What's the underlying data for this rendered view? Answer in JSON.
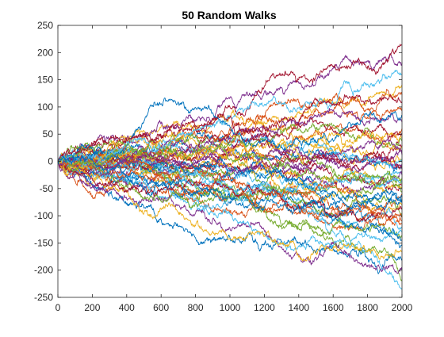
{
  "chart_data": {
    "type": "line",
    "title": "50 Random Walks",
    "xlabel": "",
    "ylabel": "",
    "xlim": [
      0,
      2000
    ],
    "ylim": [
      -250,
      250
    ],
    "x_ticks": [
      0,
      200,
      400,
      600,
      800,
      1000,
      1200,
      1400,
      1600,
      1800,
      2000
    ],
    "y_ticks": [
      -250,
      -200,
      -150,
      -100,
      -50,
      0,
      50,
      100,
      150,
      200,
      250
    ],
    "grid": false,
    "legend": "none",
    "series_count": 50,
    "steps_per_walk": 2000,
    "start_value": 0,
    "x_step": 1,
    "colors": [
      "#0072BD",
      "#D95319",
      "#EDB120",
      "#7E2F8E",
      "#77AC30",
      "#4DBEEE",
      "#A2142F"
    ],
    "series_endpoints": [
      {
        "end": 214,
        "max": 222,
        "min": -15
      },
      {
        "end": 182,
        "max": 218,
        "min": -10
      },
      {
        "end": 160,
        "max": 175,
        "min": -12
      },
      {
        "end": 140,
        "max": 150,
        "min": -8
      },
      {
        "end": 122,
        "max": 135,
        "min": -10
      },
      {
        "end": 108,
        "max": 150,
        "min": -20
      },
      {
        "end": 95,
        "max": 118,
        "min": -15
      },
      {
        "end": 85,
        "max": 110,
        "min": -18
      },
      {
        "end": 72,
        "max": 105,
        "min": -12
      },
      {
        "end": 60,
        "max": 95,
        "min": -25
      },
      {
        "end": 52,
        "max": 80,
        "min": -20
      },
      {
        "end": 45,
        "max": 100,
        "min": -15
      },
      {
        "end": 38,
        "max": 70,
        "min": -30
      },
      {
        "end": 30,
        "max": 75,
        "min": -25
      },
      {
        "end": 25,
        "max": 60,
        "min": -30
      },
      {
        "end": 18,
        "max": 65,
        "min": -35
      },
      {
        "end": 12,
        "max": 55,
        "min": -40
      },
      {
        "end": 5,
        "max": 60,
        "min": -30
      },
      {
        "end": 0,
        "max": 45,
        "min": -45
      },
      {
        "end": -5,
        "max": 50,
        "min": -40
      },
      {
        "end": -10,
        "max": 40,
        "min": -50
      },
      {
        "end": -15,
        "max": 35,
        "min": -55
      },
      {
        "end": -20,
        "max": 45,
        "min": -60
      },
      {
        "end": -25,
        "max": 30,
        "min": -65
      },
      {
        "end": -30,
        "max": 25,
        "min": -70
      },
      {
        "end": -35,
        "max": 40,
        "min": -75
      },
      {
        "end": -40,
        "max": 20,
        "min": -80
      },
      {
        "end": -45,
        "max": 30,
        "min": -70
      },
      {
        "end": -50,
        "max": 25,
        "min": -85
      },
      {
        "end": -55,
        "max": 20,
        "min": -90
      },
      {
        "end": -60,
        "max": 35,
        "min": -95
      },
      {
        "end": -65,
        "max": 15,
        "min": -100
      },
      {
        "end": -70,
        "max": 20,
        "min": -105
      },
      {
        "end": -75,
        "max": 10,
        "min": -110
      },
      {
        "end": -80,
        "max": 25,
        "min": -115
      },
      {
        "end": -88,
        "max": 15,
        "min": -120
      },
      {
        "end": -95,
        "max": 10,
        "min": -125
      },
      {
        "end": -100,
        "max": 20,
        "min": -130
      },
      {
        "end": -108,
        "max": 12,
        "min": -135
      },
      {
        "end": -115,
        "max": 15,
        "min": -140
      },
      {
        "end": -122,
        "max": 10,
        "min": -150
      },
      {
        "end": -130,
        "max": 8,
        "min": -160
      },
      {
        "end": -138,
        "max": 12,
        "min": -165
      },
      {
        "end": -145,
        "max": 10,
        "min": -175
      },
      {
        "end": -155,
        "max": 5,
        "min": -180
      },
      {
        "end": -165,
        "max": 8,
        "min": -190
      },
      {
        "end": -180,
        "max": 5,
        "min": -205
      },
      {
        "end": -200,
        "max": 5,
        "min": -215
      },
      {
        "end": -220,
        "max": 5,
        "min": -232
      },
      {
        "end": -235,
        "max": 5,
        "min": -240
      }
    ]
  }
}
